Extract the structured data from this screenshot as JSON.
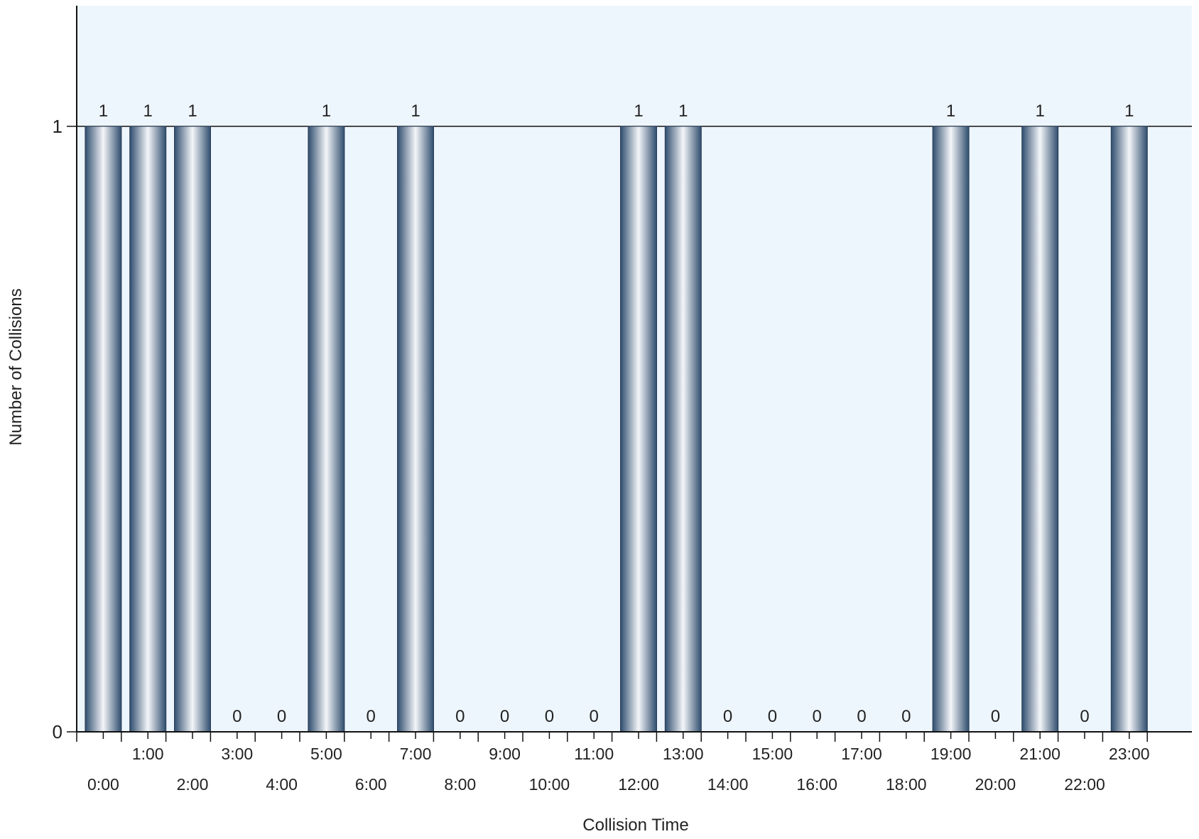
{
  "chart_data": {
    "type": "bar",
    "xlabel": "Collision Time",
    "ylabel": "Number of Collisions",
    "categories": [
      "0:00",
      "1:00",
      "2:00",
      "3:00",
      "4:00",
      "5:00",
      "6:00",
      "7:00",
      "8:00",
      "9:00",
      "10:00",
      "11:00",
      "12:00",
      "13:00",
      "14:00",
      "15:00",
      "16:00",
      "17:00",
      "18:00",
      "19:00",
      "20:00",
      "21:00",
      "22:00",
      "23:00"
    ],
    "values": [
      1,
      1,
      1,
      0,
      0,
      1,
      0,
      1,
      0,
      0,
      0,
      0,
      1,
      1,
      0,
      0,
      0,
      0,
      0,
      1,
      0,
      1,
      0,
      1
    ],
    "ylim": [
      0,
      1.2
    ],
    "yticks": [
      "0",
      "1"
    ],
    "grid": "horizontal line at 1",
    "data_labels": true,
    "plot_background": "#eef6fd",
    "bar_colors": {
      "dark": "#2f4d6e",
      "light": "#f4f6f9"
    },
    "axis_color": "#000000"
  }
}
